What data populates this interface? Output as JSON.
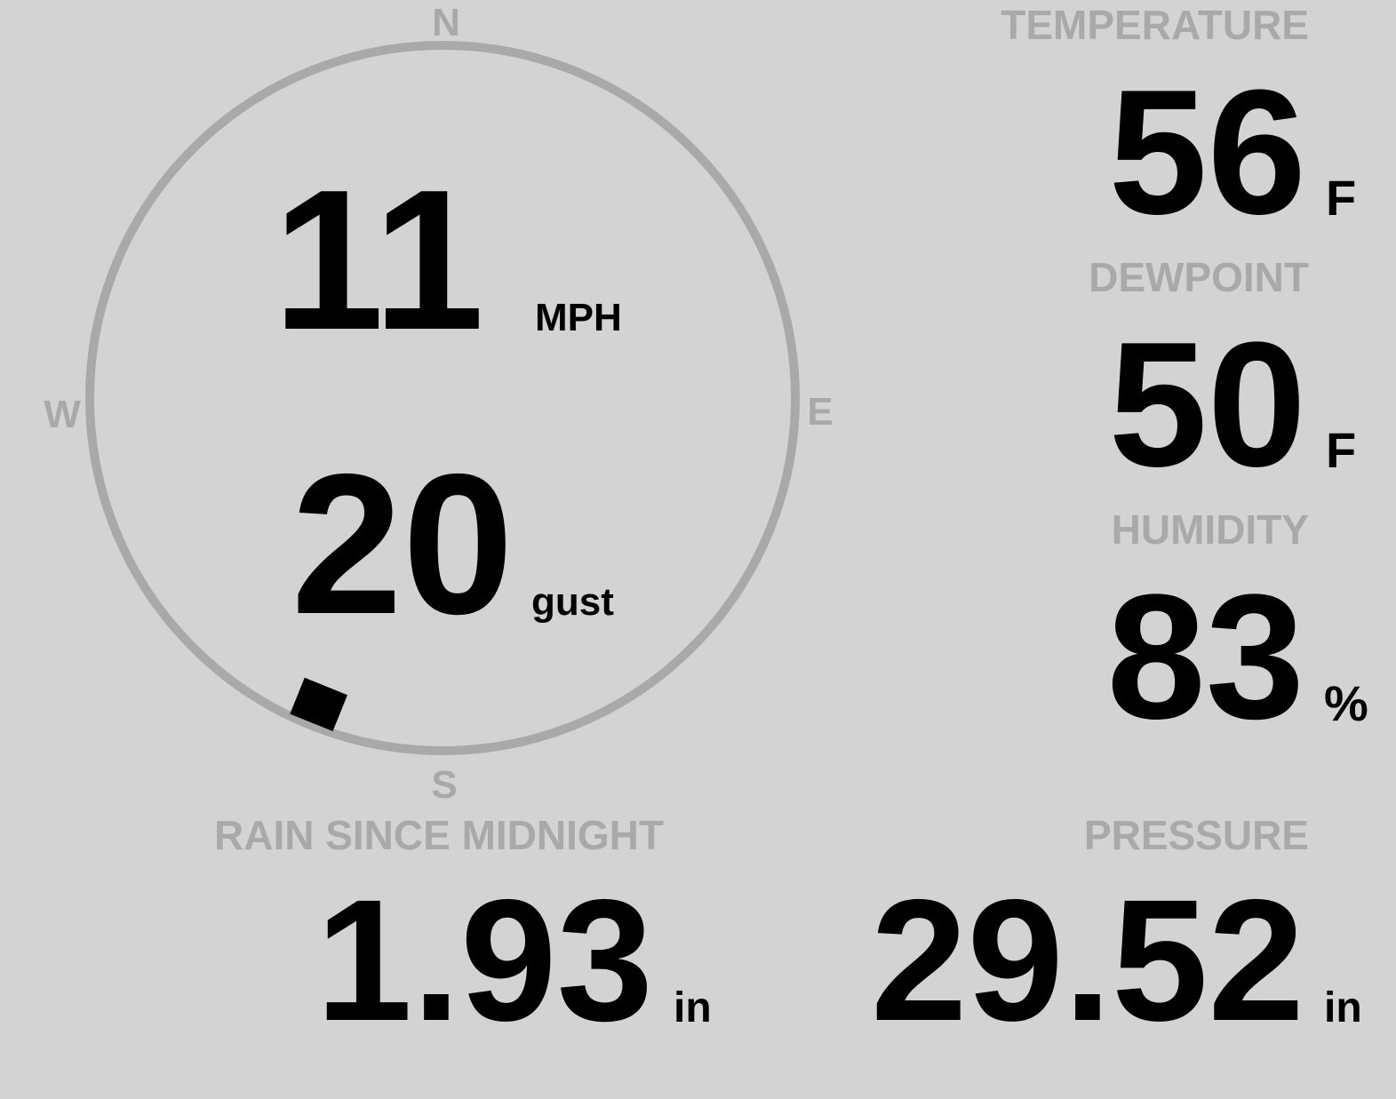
{
  "colors": {
    "background": "#d3d3d3",
    "label": "#a9a9a9",
    "value": "#000000"
  },
  "wind": {
    "speed": "11",
    "speed_unit": "MPH",
    "gust": "20",
    "gust_label": "gust",
    "direction_deg": 202,
    "compass": {
      "n": "N",
      "e": "E",
      "s": "S",
      "w": "W"
    }
  },
  "temperature": {
    "label": "TEMPERATURE",
    "value": "56",
    "unit": "F"
  },
  "dewpoint": {
    "label": "DEWPOINT",
    "value": "50",
    "unit": "F"
  },
  "humidity": {
    "label": "HUMIDITY",
    "value": "83",
    "unit": "%"
  },
  "rain": {
    "label": "RAIN SINCE MIDNIGHT",
    "value": "1.93",
    "unit": "in"
  },
  "pressure": {
    "label": "PRESSURE",
    "value": "29.52",
    "unit": "in"
  }
}
